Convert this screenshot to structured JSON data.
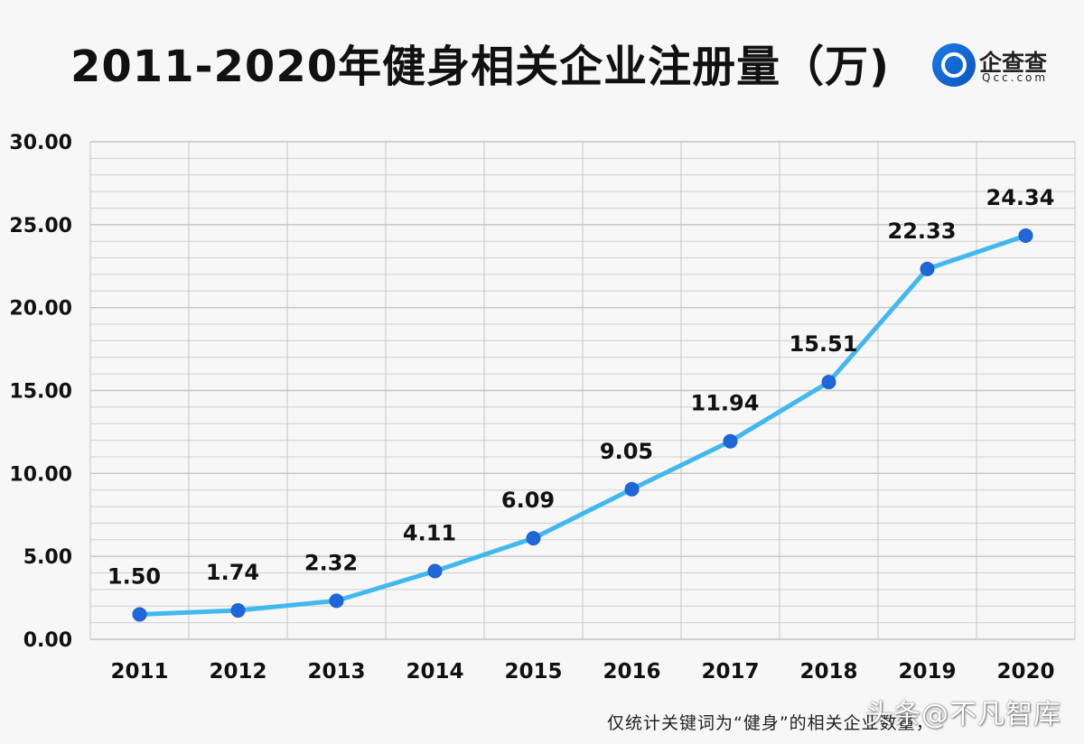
{
  "title": "2011-2020年健身相关企业注册量（万)",
  "brand": {
    "name": "企查查",
    "url": "Qcc.com",
    "icon": "qcc-logo-icon",
    "color": "#1668d8"
  },
  "footer_note": "仅统计关键词为“健身”的相关企业数量，",
  "watermark": "头条@不凡智库",
  "chart_data": {
    "type": "line",
    "x": [
      2011,
      2012,
      2013,
      2014,
      2015,
      2016,
      2017,
      2018,
      2019,
      2020
    ],
    "categories": [
      "2011",
      "2012",
      "2013",
      "2014",
      "2015",
      "2016",
      "2017",
      "2018",
      "2019",
      "2020"
    ],
    "values": [
      1.5,
      1.74,
      2.32,
      4.11,
      6.09,
      9.05,
      11.94,
      15.51,
      22.33,
      24.34
    ],
    "labels": [
      "1.50",
      "1.74",
      "2.32",
      "4.11",
      "6.09",
      "9.05",
      "11.94",
      "15.51",
      "22.33",
      "24.34"
    ],
    "y_ticks": [
      "0.00",
      "5.00",
      "10.00",
      "15.00",
      "20.00",
      "25.00",
      "30.00"
    ],
    "ylim": [
      0,
      30
    ],
    "grid": true,
    "colors": {
      "line": "#41b8ee",
      "marker": "#1f67d8",
      "grid": "#cfcfcf",
      "grid_major": "#c4c4c4",
      "text": "#111111"
    },
    "title": "2011-2020年健身相关企业注册量（万)",
    "xlabel": "",
    "ylabel": ""
  }
}
